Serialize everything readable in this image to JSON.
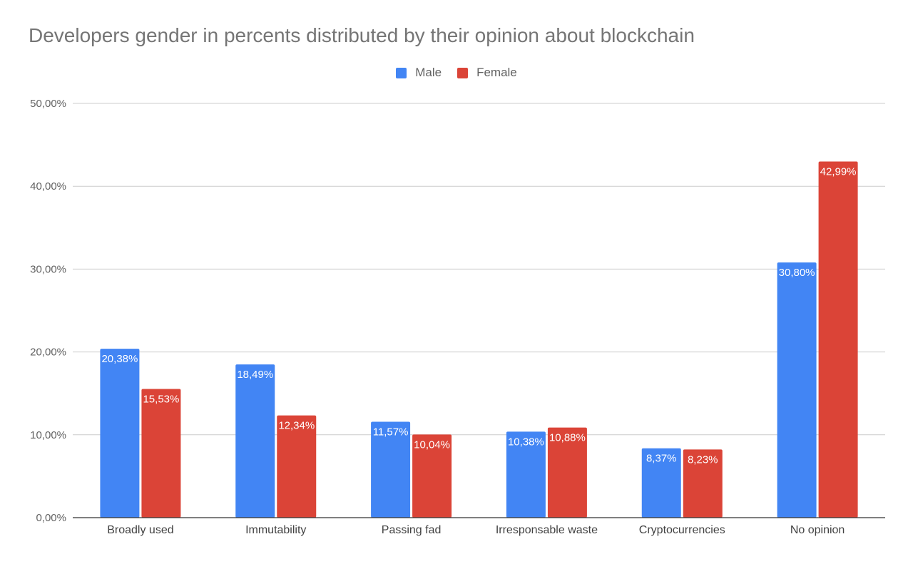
{
  "chart_data": {
    "type": "bar",
    "title": "Developers gender in percents distributed by their opinion about blockchain",
    "categories": [
      "Broadly used",
      "Immutability",
      "Passing fad",
      "Irresponsable waste",
      "Cryptocurrencies",
      "No opinion"
    ],
    "series": [
      {
        "name": "Male",
        "color": "#4285f4",
        "values": [
          20.38,
          18.49,
          11.57,
          10.38,
          8.37,
          30.8
        ],
        "labels": [
          "20,38%",
          "18,49%",
          "11,57%",
          "10,38%",
          "8,37%",
          "30,80%"
        ]
      },
      {
        "name": "Female",
        "color": "#db4437",
        "values": [
          15.53,
          12.34,
          10.04,
          10.88,
          8.23,
          42.99
        ],
        "labels": [
          "15,53%",
          "12,34%",
          "10,04%",
          "10,88%",
          "8,23%",
          "42,99%"
        ]
      }
    ],
    "ylim": [
      0,
      50
    ],
    "yticks": [
      0,
      10,
      20,
      30,
      40,
      50
    ],
    "ytick_labels": [
      "0,00%",
      "10,00%",
      "20,00%",
      "30,00%",
      "40,00%",
      "50,00%"
    ],
    "xlabel": "",
    "ylabel": "",
    "grid": true,
    "legend_position": "top-center"
  }
}
